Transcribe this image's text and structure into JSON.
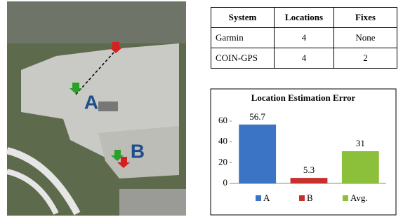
{
  "photo": {
    "labels": [
      "A",
      "B"
    ]
  },
  "table": {
    "header": [
      "System",
      "Locations",
      "Fixes"
    ],
    "rows": [
      [
        "Garmin",
        "4",
        "None"
      ],
      [
        "COIN-GPS",
        "4",
        "2"
      ]
    ]
  },
  "chart_data": {
    "type": "bar",
    "title": "Location Estimation Error",
    "categories": [
      "A",
      "B",
      "Avg."
    ],
    "values": [
      56.7,
      5.3,
      31
    ],
    "colors": [
      "#3b74c4",
      "#c9302c",
      "#8cbf3a"
    ],
    "ylim": [
      0,
      60
    ],
    "yticks": [
      0,
      20,
      40,
      60
    ],
    "legend": "bottom"
  }
}
